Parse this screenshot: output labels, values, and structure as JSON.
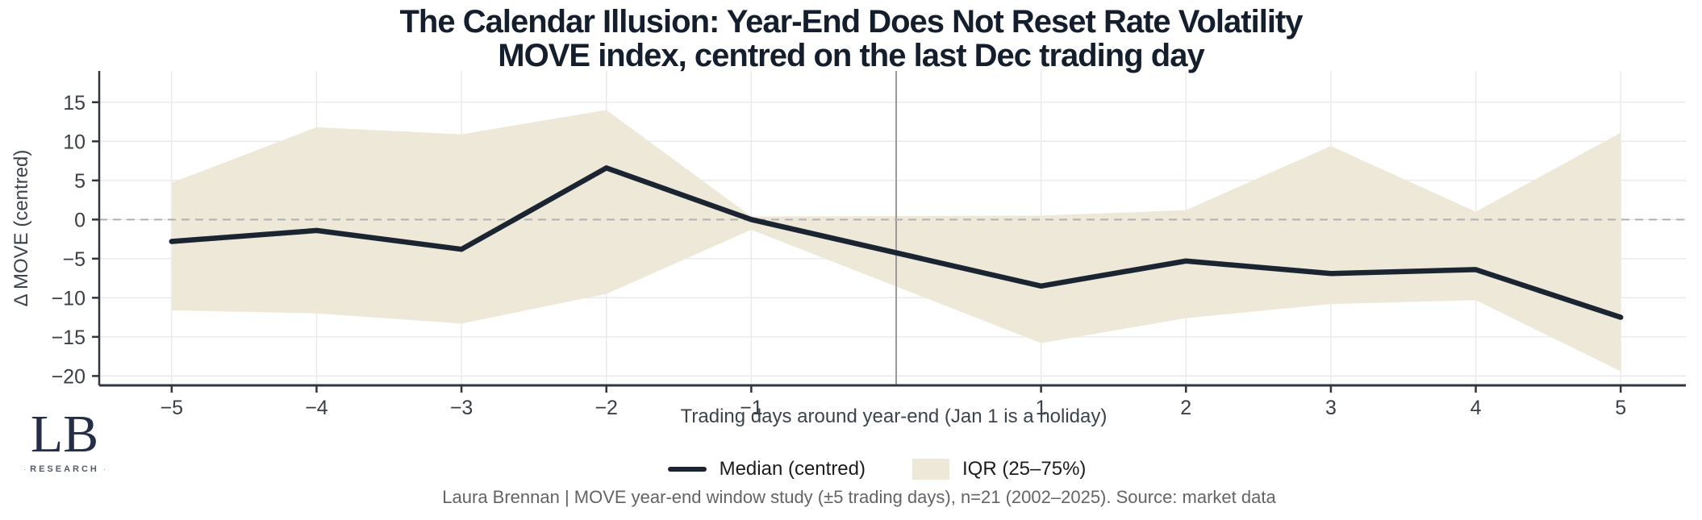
{
  "title": {
    "line1": "The Calendar Illusion: Year-End Does Not Reset Rate Volatility",
    "line2": "MOVE index, centred on the last Dec trading day"
  },
  "chart_data": {
    "type": "line",
    "x": [
      -5,
      -4,
      -3,
      -2,
      -1,
      1,
      2,
      3,
      4,
      5
    ],
    "series": [
      {
        "name": "Median (centred)",
        "values": [
          -2.8,
          -1.4,
          -3.8,
          6.6,
          0.0,
          -8.5,
          -5.3,
          -6.9,
          -6.4,
          -12.5
        ]
      }
    ],
    "band": {
      "name": "IQR (25–75%)",
      "upper": [
        4.7,
        11.8,
        10.9,
        14.0,
        0.4,
        0.5,
        1.2,
        9.4,
        1.0,
        11.1
      ],
      "lower": [
        -11.6,
        -12.0,
        -13.3,
        -9.5,
        -1.3,
        -15.8,
        -12.6,
        -10.8,
        -10.3,
        -19.4
      ]
    },
    "xlabel": "Trading days around year-end (Jan 1 is a holiday)",
    "ylabel": "Δ MOVE (centred)",
    "x_ticks": [
      -5,
      -4,
      -3,
      -2,
      -1,
      1,
      2,
      3,
      4,
      5
    ],
    "y_ticks": [
      15,
      10,
      5,
      0,
      -5,
      -10,
      -15,
      -20
    ],
    "xlim": [
      -5.5,
      5.45
    ],
    "ylim": [
      -21.2,
      19.0
    ],
    "vline_x": 0,
    "zero_dashed_line": true,
    "grid": true,
    "legend_position": "bottom-center",
    "colors": {
      "median_line": "#1b2431",
      "iqr_band": "#eee8d9",
      "grid_line": "#e9e9e9",
      "zero_line": "#b0b0b0",
      "vline": "#9a9a9a",
      "spine": "#30353e",
      "tick_label": "#3a3f47"
    }
  },
  "legend": [
    {
      "label": "Median (centred)",
      "swatch": "line"
    },
    {
      "label": "IQR (25–75%)",
      "swatch": "patch"
    }
  ],
  "caption": "Laura Brennan | MOVE year-end window study (±5 trading days), n=21 (2002–2025). Source: market data",
  "logo": {
    "text": "LB",
    "subtext": "RESEARCH"
  }
}
